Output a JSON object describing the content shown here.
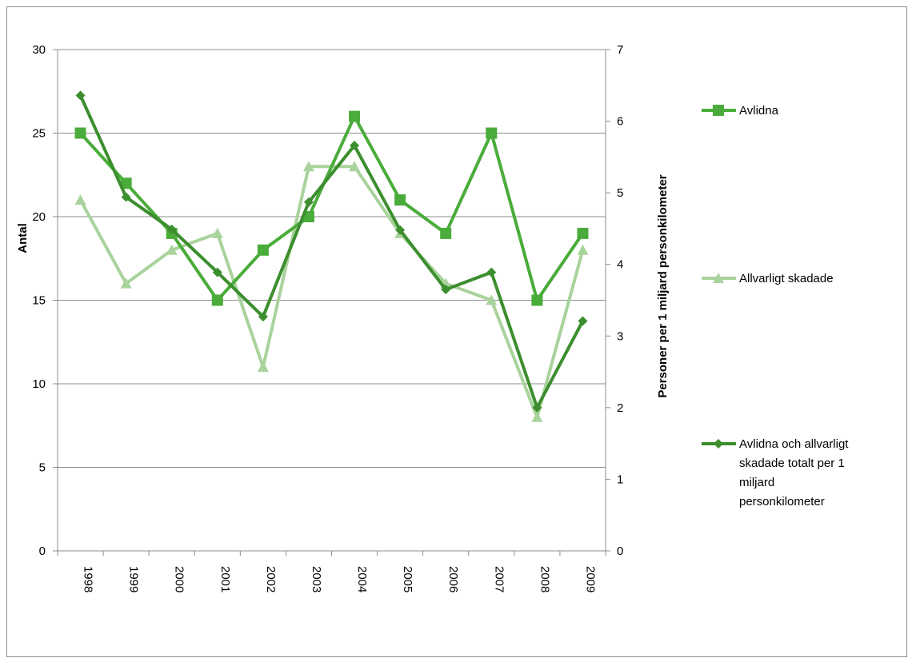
{
  "chart_data": {
    "type": "line",
    "categories": [
      "1998",
      "1999",
      "2000",
      "2001",
      "2002",
      "2003",
      "2004",
      "2005",
      "2006",
      "2007",
      "2008",
      "2009"
    ],
    "ylabel": "Antal",
    "ylim": [
      0,
      30
    ],
    "yticks": [
      "0",
      "5",
      "10",
      "15",
      "20",
      "25",
      "30"
    ],
    "y2label": "Personer per 1 miljard personkilometer",
    "y2lim": [
      0,
      7
    ],
    "y2ticks": [
      "0",
      "1",
      "2",
      "3",
      "4",
      "5",
      "6",
      "7"
    ],
    "grid": true,
    "legend_position": "right",
    "series": [
      {
        "name": "Avlidna",
        "axis": "left",
        "marker": "square",
        "color": "#4aac3a",
        "values": [
          25,
          22,
          19,
          15,
          18,
          20,
          26,
          21,
          19,
          25,
          15,
          19
        ]
      },
      {
        "name": "Allvarligt skadade",
        "axis": "left",
        "marker": "triangle",
        "color": "#a9d39c",
        "values": [
          21,
          16,
          18,
          19,
          11,
          23,
          23,
          19,
          16,
          15,
          8,
          18
        ]
      },
      {
        "name": "Avlidna och allvarligt skadade totalt   per 1 miljard personkilometer",
        "legend_lines": [
          "Avlidna och allvarligt",
          "skadade totalt   per 1",
          "miljard",
          "personkilometer"
        ],
        "axis": "right",
        "marker": "diamond",
        "color": "#3c8e2e",
        "values": [
          6.36,
          4.94,
          4.49,
          3.89,
          3.27,
          4.87,
          5.66,
          4.48,
          3.65,
          3.89,
          2.0,
          3.21
        ]
      }
    ]
  }
}
